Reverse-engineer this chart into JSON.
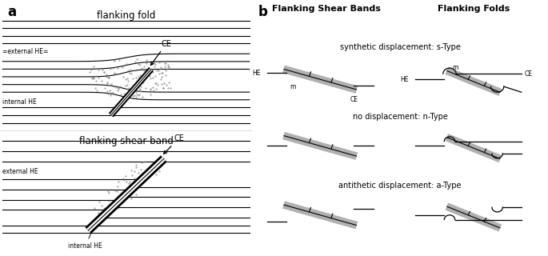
{
  "panel_a_title_top": "flanking fold",
  "panel_a_title_bottom": "flanking shear band",
  "panel_b_col1_title": "Flanking Shear Bands",
  "panel_b_col2_title": "Flanking Folds",
  "row_labels": [
    "synthetic displacement: s-Type",
    "no displacement: n-Type",
    "antithetic displacement: a-Type"
  ],
  "label_a": "a",
  "label_b": "b",
  "bg_color": "#ffffff",
  "line_color": "#000000",
  "gray_color": "#aaaaaa"
}
